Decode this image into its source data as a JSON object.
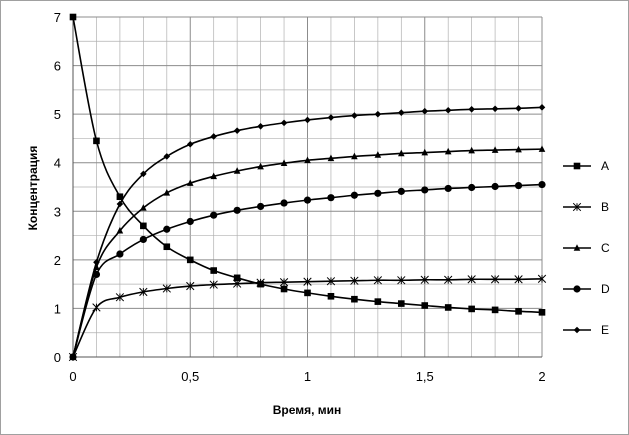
{
  "chart_data": {
    "type": "line",
    "title": "",
    "xlabel": "Время, мин",
    "ylabel": "Концентрация",
    "xlim": [
      0,
      2
    ],
    "ylim": [
      0,
      7
    ],
    "x_ticks": [
      "0",
      "0,5",
      "1",
      "1,5",
      "2"
    ],
    "y_ticks": [
      "0",
      "1",
      "2",
      "3",
      "4",
      "5",
      "6",
      "7"
    ],
    "grid": true,
    "legend_position": "right",
    "x": [
      0,
      0.1,
      0.2,
      0.3,
      0.4,
      0.5,
      0.6,
      0.7,
      0.8,
      0.9,
      1.0,
      1.1,
      1.2,
      1.3,
      1.4,
      1.5,
      1.6,
      1.7,
      1.8,
      1.9,
      2.0
    ],
    "series": [
      {
        "name": "A",
        "marker": "square",
        "values": [
          7.0,
          4.45,
          3.3,
          2.7,
          2.27,
          2.0,
          1.78,
          1.63,
          1.5,
          1.4,
          1.32,
          1.25,
          1.19,
          1.14,
          1.1,
          1.06,
          1.02,
          0.99,
          0.97,
          0.94,
          0.92
        ]
      },
      {
        "name": "B",
        "marker": "star",
        "values": [
          0.0,
          1.02,
          1.23,
          1.34,
          1.41,
          1.46,
          1.49,
          1.51,
          1.53,
          1.54,
          1.55,
          1.56,
          1.57,
          1.58,
          1.58,
          1.59,
          1.59,
          1.6,
          1.6,
          1.6,
          1.61
        ]
      },
      {
        "name": "C",
        "marker": "triangle",
        "values": [
          0.0,
          1.85,
          2.6,
          3.07,
          3.38,
          3.58,
          3.72,
          3.83,
          3.92,
          3.99,
          4.05,
          4.09,
          4.13,
          4.16,
          4.19,
          4.21,
          4.23,
          4.25,
          4.26,
          4.27,
          4.28
        ]
      },
      {
        "name": "D",
        "marker": "circle",
        "values": [
          0.0,
          1.7,
          2.12,
          2.42,
          2.63,
          2.79,
          2.92,
          3.02,
          3.1,
          3.17,
          3.23,
          3.28,
          3.33,
          3.37,
          3.41,
          3.44,
          3.47,
          3.49,
          3.51,
          3.53,
          3.55
        ]
      },
      {
        "name": "E",
        "marker": "diamond",
        "values": [
          0.0,
          1.95,
          3.15,
          3.77,
          4.13,
          4.38,
          4.54,
          4.66,
          4.75,
          4.82,
          4.88,
          4.93,
          4.97,
          5.0,
          5.03,
          5.06,
          5.08,
          5.1,
          5.11,
          5.12,
          5.14
        ]
      }
    ],
    "colors": {
      "line": "#000000",
      "grid": "#b0b0b0",
      "frame": "#a0a0a0"
    }
  }
}
